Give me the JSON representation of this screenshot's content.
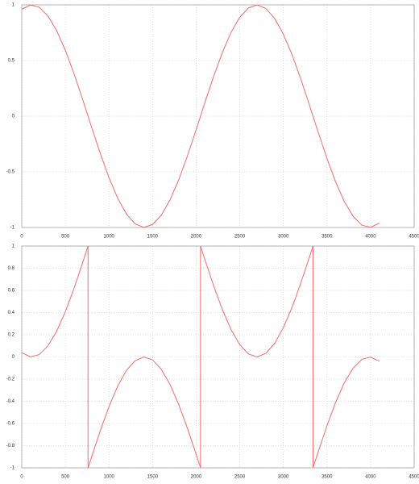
{
  "chart_data": [
    {
      "type": "line",
      "grid": true,
      "x": [
        0,
        100,
        200,
        300,
        400,
        500,
        600,
        700,
        800,
        900,
        1000,
        1100,
        1200,
        1300,
        1400,
        1500,
        1600,
        1700,
        1800,
        1900,
        2000,
        2100,
        2200,
        2300,
        2400,
        2500,
        2600,
        2700,
        2800,
        2900,
        3000,
        3100,
        3200,
        3300,
        3400,
        3500,
        3600,
        3700,
        3800,
        3900,
        4000,
        4100
      ],
      "series": [
        {
          "color": "#f26b6b",
          "values": [
            0.961,
            0.999,
            0.979,
            0.9,
            0.769,
            0.592,
            0.38,
            0.146,
            -0.097,
            -0.334,
            -0.552,
            -0.737,
            -0.878,
            -0.967,
            -1,
            -0.973,
            -0.889,
            -0.753,
            -0.571,
            -0.357,
            -0.122,
            0.122,
            0.357,
            0.571,
            0.753,
            0.889,
            0.973,
            1,
            0.967,
            0.878,
            0.736,
            0.552,
            0.334,
            0.097,
            -0.146,
            -0.38,
            -0.592,
            -0.769,
            -0.9,
            -0.979,
            -0.999,
            -0.961
          ]
        }
      ],
      "xlim": [
        0,
        4500
      ],
      "xticks": [
        0,
        500,
        1000,
        1500,
        2000,
        2500,
        3000,
        3500,
        4000,
        4500
      ],
      "ylim": [
        -1,
        1
      ],
      "yticks": [
        -1,
        -0.5,
        0,
        0.5,
        1
      ]
    },
    {
      "type": "line",
      "grid": true,
      "x": [
        0,
        100,
        200,
        300,
        400,
        500,
        600,
        700,
        760,
        760,
        800,
        900,
        1000,
        1100,
        1200,
        1300,
        1400,
        1500,
        1600,
        1700,
        1800,
        1900,
        2000,
        2050,
        2050,
        2100,
        2200,
        2300,
        2400,
        2500,
        2600,
        2700,
        2800,
        2900,
        3000,
        3100,
        3200,
        3300,
        3340,
        3340,
        3400,
        3500,
        3600,
        3700,
        3800,
        3900,
        4000,
        4100
      ],
      "series": [
        {
          "color": "#f26b6b",
          "values": [
            0.039,
            0.001,
            0.021,
            0.1,
            0.231,
            0.408,
            0.62,
            0.854,
            1,
            -1,
            -0.903,
            -0.666,
            -0.448,
            -0.263,
            -0.122,
            -0.033,
            0,
            -0.027,
            -0.111,
            -0.247,
            -0.429,
            -0.643,
            -0.878,
            -1,
            1,
            0.878,
            0.643,
            0.429,
            0.247,
            0.111,
            0.027,
            0,
            0.033,
            0.122,
            0.264,
            0.448,
            0.666,
            0.903,
            1,
            -1,
            -0.854,
            -0.62,
            -0.408,
            -0.231,
            -0.1,
            -0.021,
            -0.001,
            -0.039
          ]
        }
      ],
      "xlim": [
        0,
        4500
      ],
      "xticks": [
        0,
        500,
        1000,
        1500,
        2000,
        2500,
        3000,
        3500,
        4000,
        4500
      ],
      "ylim": [
        -1,
        1
      ],
      "yticks": [
        -1,
        -0.8,
        -0.6,
        -0.4,
        -0.2,
        0,
        0.2,
        0.4,
        0.6,
        0.8,
        1
      ]
    }
  ]
}
